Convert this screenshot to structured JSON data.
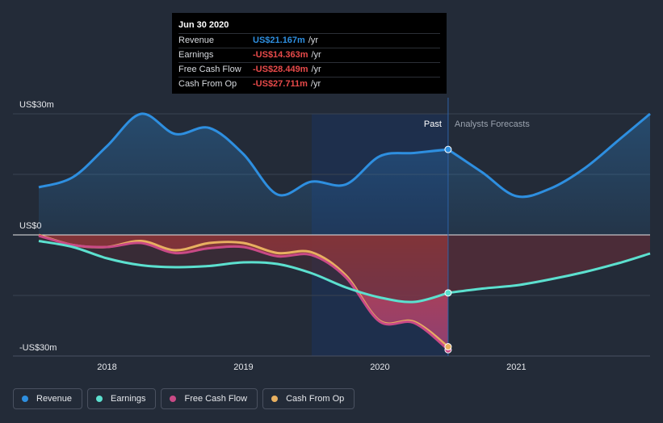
{
  "tooltip": {
    "date": "Jun 30 2020",
    "rows": [
      {
        "label": "Revenue",
        "value": "US$21.167m",
        "unit": "/yr"
      },
      {
        "label": "Earnings",
        "value": "-US$14.363m",
        "unit": "/yr"
      },
      {
        "label": "Free Cash Flow",
        "value": "-US$28.449m",
        "unit": "/yr"
      },
      {
        "label": "Cash From Op",
        "value": "-US$27.711m",
        "unit": "/yr"
      }
    ]
  },
  "labels": {
    "past": "Past",
    "forecast": "Analysts Forecasts"
  },
  "legend": [
    {
      "label": "Revenue"
    },
    {
      "label": "Earnings"
    },
    {
      "label": "Free Cash Flow"
    },
    {
      "label": "Cash From Op"
    }
  ],
  "colors": {
    "revenue": "#2e8fe0",
    "earnings": "#5ce0cf",
    "free_cash_flow": "#c94a86",
    "cash_from_op": "#e8b060",
    "positive_text": "#2e8fe0",
    "negative_text": "#e84a4a"
  },
  "chart_data": {
    "type": "line",
    "title": "",
    "xlabel": "",
    "ylabel": "",
    "ylim": [
      -30,
      30
    ],
    "xlim": [
      2017.5,
      2021.98
    ],
    "y_ticks": [
      {
        "value": 30,
        "label": "US$30m"
      },
      {
        "value": 0,
        "label": "US$0"
      },
      {
        "value": -30,
        "label": "-US$30m"
      }
    ],
    "x_ticks": [
      {
        "value": 2018,
        "label": "2018"
      },
      {
        "value": 2019,
        "label": "2019"
      },
      {
        "value": 2020,
        "label": "2020"
      },
      {
        "value": 2021,
        "label": "2021"
      }
    ],
    "past_end": 2020.5,
    "highlight_start": 2019.5,
    "series": [
      {
        "name": "Revenue",
        "key": "revenue",
        "past": [
          [
            2017.5,
            11.8
          ],
          [
            2017.75,
            14.3
          ],
          [
            2018.0,
            22.0
          ],
          [
            2018.25,
            30.0
          ],
          [
            2018.5,
            25.0
          ],
          [
            2018.75,
            26.5
          ],
          [
            2019.0,
            20.0
          ],
          [
            2019.25,
            10.0
          ],
          [
            2019.5,
            13.2
          ],
          [
            2019.75,
            12.5
          ],
          [
            2020.0,
            19.5
          ],
          [
            2020.25,
            20.3
          ],
          [
            2020.5,
            21.167
          ]
        ],
        "forecast": [
          [
            2020.5,
            21.167
          ],
          [
            2020.75,
            15.5
          ],
          [
            2021.0,
            9.6
          ],
          [
            2021.25,
            11.5
          ],
          [
            2021.5,
            16.5
          ],
          [
            2021.75,
            23.5
          ],
          [
            2021.98,
            30.0
          ]
        ]
      },
      {
        "name": "Earnings",
        "key": "earnings",
        "past": [
          [
            2017.5,
            -1.5
          ],
          [
            2017.75,
            -3.0
          ],
          [
            2018.0,
            -5.8
          ],
          [
            2018.25,
            -7.5
          ],
          [
            2018.5,
            -8.0
          ],
          [
            2018.75,
            -7.7
          ],
          [
            2019.0,
            -6.8
          ],
          [
            2019.25,
            -7.2
          ],
          [
            2019.5,
            -9.5
          ],
          [
            2019.75,
            -13.0
          ],
          [
            2020.0,
            -15.5
          ],
          [
            2020.25,
            -16.6
          ],
          [
            2020.5,
            -14.363
          ]
        ],
        "forecast": [
          [
            2020.5,
            -14.363
          ],
          [
            2020.75,
            -13.3
          ],
          [
            2021.0,
            -12.5
          ],
          [
            2021.25,
            -11.0
          ],
          [
            2021.5,
            -9.2
          ],
          [
            2021.75,
            -7.0
          ],
          [
            2021.98,
            -4.6
          ]
        ]
      },
      {
        "name": "Free Cash Flow",
        "key": "free_cash_flow",
        "past": [
          [
            2017.5,
            -0.2
          ],
          [
            2017.75,
            -2.5
          ],
          [
            2018.0,
            -3.0
          ],
          [
            2018.25,
            -2.0
          ],
          [
            2018.5,
            -4.5
          ],
          [
            2018.75,
            -3.3
          ],
          [
            2019.0,
            -3.0
          ],
          [
            2019.25,
            -5.3
          ],
          [
            2019.5,
            -5.0
          ],
          [
            2019.75,
            -10.5
          ],
          [
            2020.0,
            -21.5
          ],
          [
            2020.25,
            -21.8
          ],
          [
            2020.5,
            -28.449
          ]
        ],
        "forecast": []
      },
      {
        "name": "Cash From Op",
        "key": "cash_from_op",
        "past": [
          [
            2017.5,
            0.0
          ],
          [
            2017.75,
            -2.5
          ],
          [
            2018.0,
            -3.0
          ],
          [
            2018.25,
            -1.5
          ],
          [
            2018.5,
            -3.8
          ],
          [
            2018.75,
            -2.0
          ],
          [
            2019.0,
            -2.0
          ],
          [
            2019.25,
            -4.5
          ],
          [
            2019.5,
            -4.3
          ],
          [
            2019.75,
            -10.0
          ],
          [
            2020.0,
            -21.3
          ],
          [
            2020.25,
            -21.5
          ],
          [
            2020.5,
            -27.711
          ]
        ],
        "forecast": []
      }
    ]
  }
}
